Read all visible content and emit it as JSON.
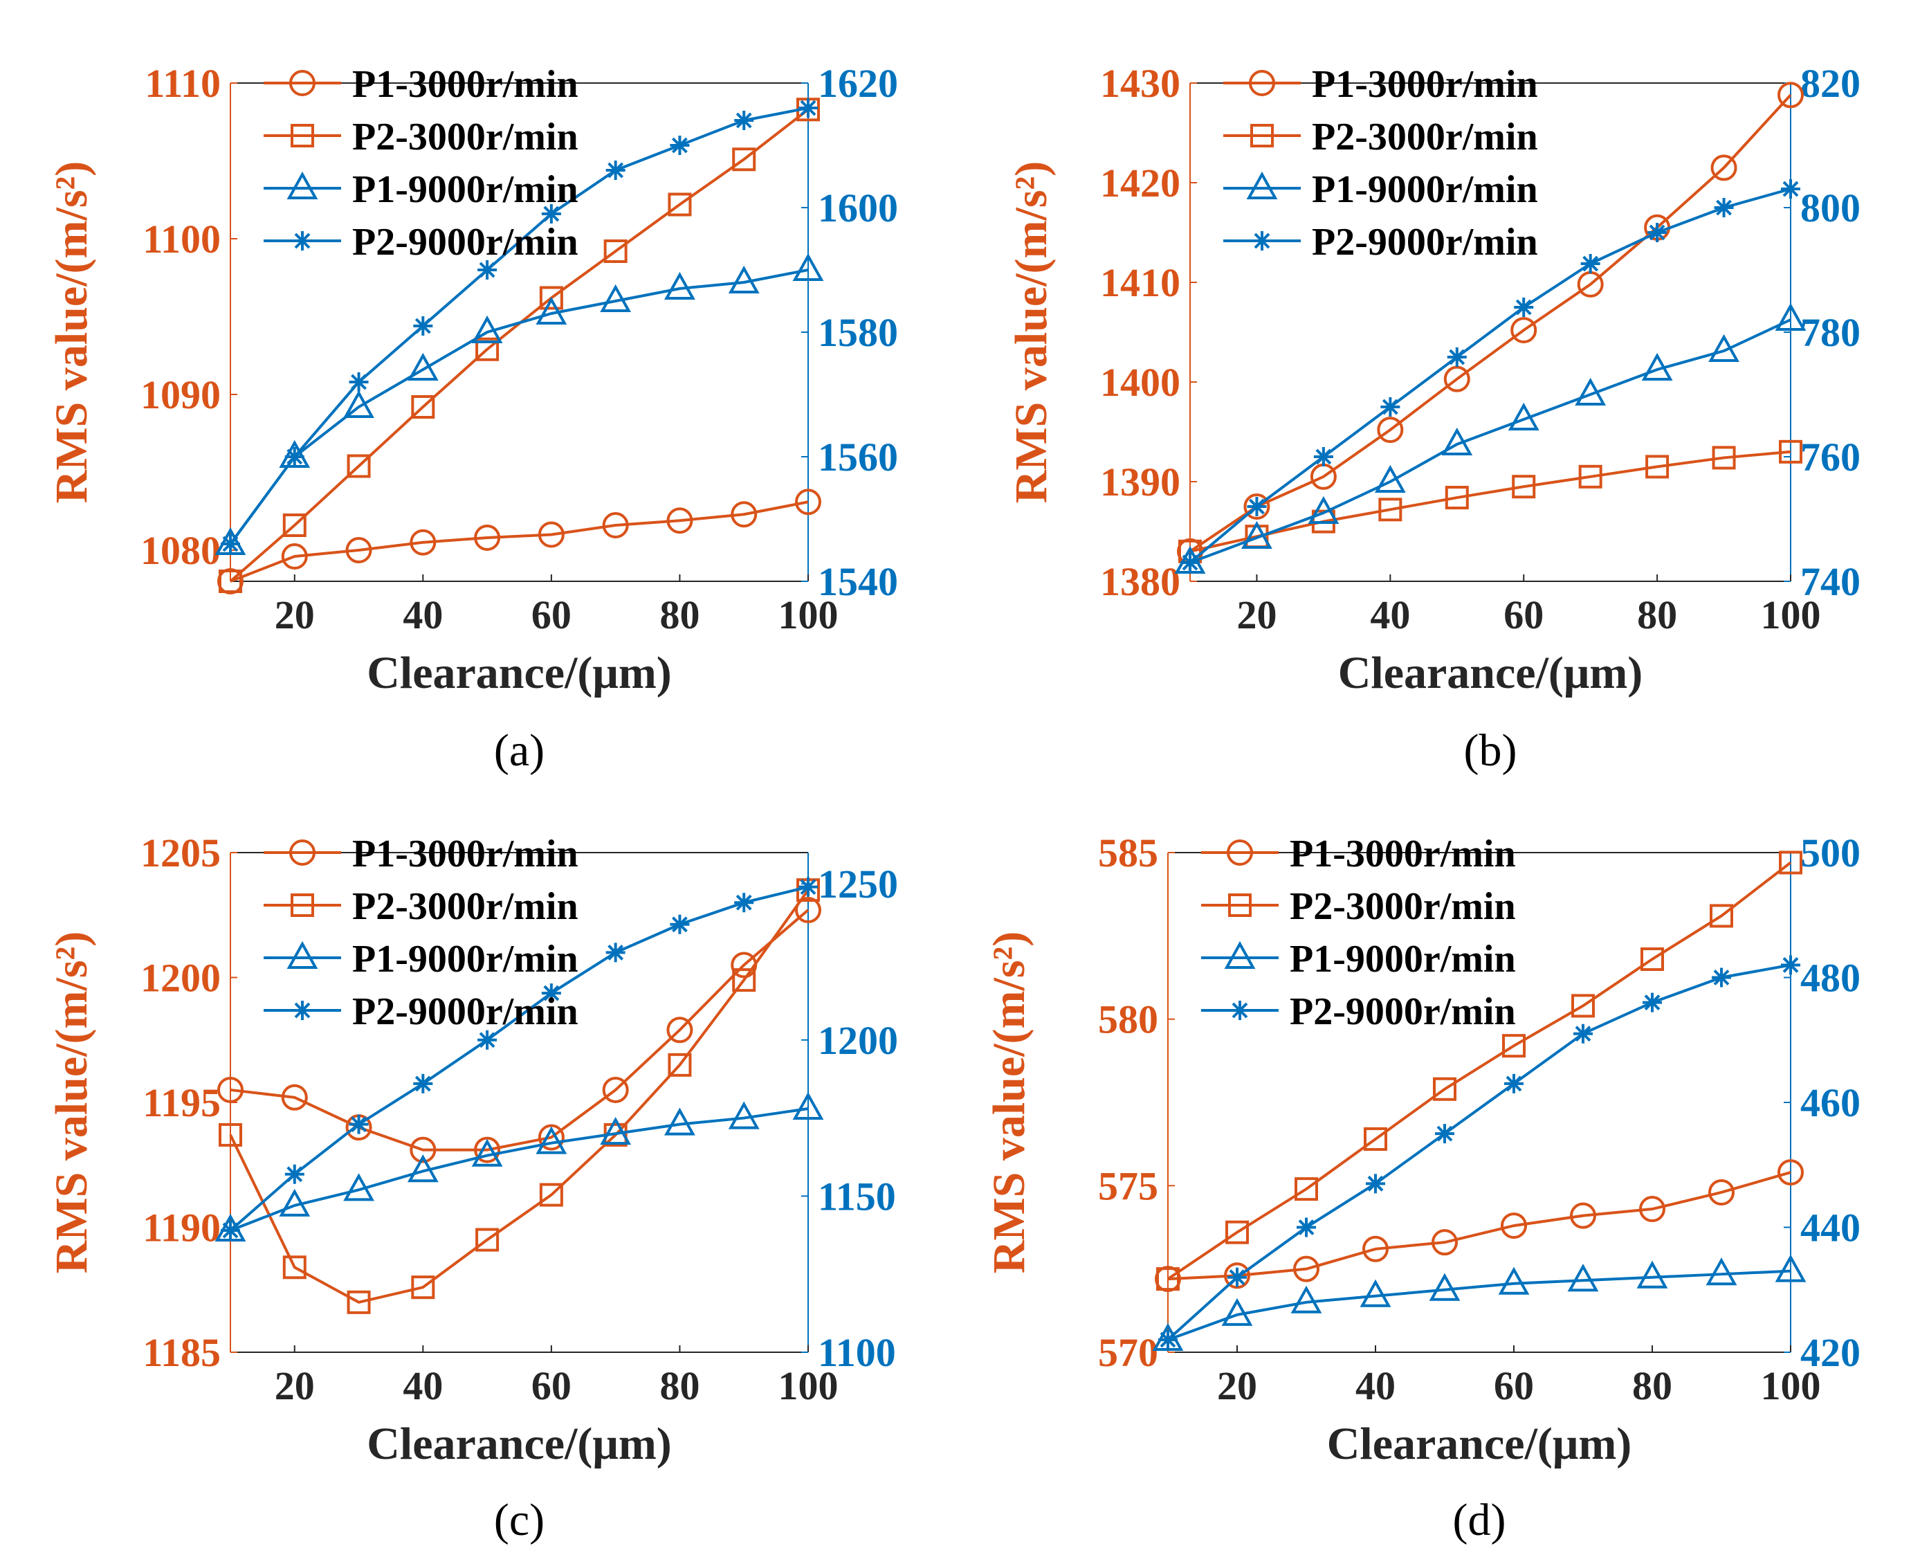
{
  "colors": {
    "left_axis": "#D95319",
    "right_axis": "#0072BD",
    "frame": "#262626"
  },
  "legend_labels": [
    "P1-3000r/min",
    "P2-3000r/min",
    "P1-9000r/min",
    "P2-9000r/min"
  ],
  "chart_data": [
    {
      "type": "line",
      "panel_label": "(a)",
      "xlabel": "Clearance/(μm)",
      "ylabel": "RMS value/(m/s²)",
      "x": [
        10,
        20,
        30,
        40,
        50,
        60,
        70,
        80,
        90,
        100
      ],
      "xlim": [
        10,
        100
      ],
      "xticks": [
        "20",
        "40",
        "60",
        "80",
        "100"
      ],
      "ylim_left": [
        1078,
        1110
      ],
      "yticks_left": [
        "1080",
        "1090",
        "1100",
        "1110"
      ],
      "ylim_right": [
        1540,
        1620
      ],
      "yticks_right": [
        "1540",
        "1560",
        "1580",
        "1600",
        "1620"
      ],
      "legend": "top-left",
      "series": [
        {
          "name": "P1-3000r/min",
          "axis": "left",
          "marker": "circle",
          "values": [
            1078.0,
            1079.6,
            1080.0,
            1080.5,
            1080.8,
            1081.0,
            1081.6,
            1081.9,
            1082.3,
            1083.1
          ]
        },
        {
          "name": "P2-3000r/min",
          "axis": "left",
          "marker": "square",
          "values": [
            1078.0,
            1081.6,
            1085.4,
            1089.2,
            1092.9,
            1096.2,
            1099.2,
            1102.2,
            1105.1,
            1108.3
          ]
        },
        {
          "name": "P1-9000r/min",
          "axis": "right",
          "marker": "triangle",
          "values": [
            1546,
            1560,
            1568,
            1574,
            1580,
            1583,
            1585,
            1587,
            1588,
            1590
          ]
        },
        {
          "name": "P2-9000r/min",
          "axis": "right",
          "marker": "star",
          "values": [
            1546,
            1560,
            1572,
            1581,
            1590,
            1599,
            1606,
            1610,
            1614,
            1616
          ]
        }
      ]
    },
    {
      "type": "line",
      "panel_label": "(b)",
      "xlabel": "Clearance/(μm)",
      "ylabel": "RMS value/(m/s²)",
      "x": [
        10,
        20,
        30,
        40,
        50,
        60,
        70,
        80,
        90,
        100
      ],
      "xlim": [
        10,
        100
      ],
      "xticks": [
        "20",
        "40",
        "60",
        "80",
        "100"
      ],
      "ylim_left": [
        1380,
        1430
      ],
      "yticks_left": [
        "1380",
        "1390",
        "1400",
        "1410",
        "1420",
        "1430"
      ],
      "ylim_right": [
        740,
        820
      ],
      "yticks_right": [
        "740",
        "760",
        "780",
        "800",
        "820"
      ],
      "legend": "top-left",
      "series": [
        {
          "name": "P1-3000r/min",
          "axis": "left",
          "marker": "circle",
          "values": [
            1383.0,
            1387.5,
            1390.5,
            1395.2,
            1400.3,
            1405.2,
            1409.8,
            1415.5,
            1421.5,
            1428.8
          ]
        },
        {
          "name": "P2-3000r/min",
          "axis": "left",
          "marker": "square",
          "values": [
            1383.0,
            1384.5,
            1386.0,
            1387.2,
            1388.4,
            1389.5,
            1390.5,
            1391.5,
            1392.4,
            1393.0
          ]
        },
        {
          "name": "P1-9000r/min",
          "axis": "right",
          "marker": "triangle",
          "values": [
            743,
            747,
            751,
            756,
            762,
            766,
            770,
            774,
            777,
            782
          ]
        },
        {
          "name": "P2-9000r/min",
          "axis": "right",
          "marker": "star",
          "values": [
            743,
            752,
            760,
            768,
            776,
            784,
            791,
            796,
            800,
            803
          ]
        }
      ]
    },
    {
      "type": "line",
      "panel_label": "(c)",
      "xlabel": "Clearance/(μm)",
      "ylabel": "RMS value/(m/s²)",
      "x": [
        10,
        20,
        30,
        40,
        50,
        60,
        70,
        80,
        90,
        100
      ],
      "xlim": [
        10,
        100
      ],
      "xticks": [
        "20",
        "40",
        "60",
        "80",
        "100"
      ],
      "ylim_left": [
        1185,
        1205
      ],
      "yticks_left": [
        "1185",
        "1190",
        "1195",
        "1200",
        "1205"
      ],
      "ylim_right": [
        1100,
        1260
      ],
      "yticks_right": [
        "1100",
        "1150",
        "1200",
        "1250"
      ],
      "legend": "top-left",
      "series": [
        {
          "name": "P1-3000r/min",
          "axis": "left",
          "marker": "circle",
          "values": [
            1195.5,
            1195.2,
            1194.0,
            1193.1,
            1193.1,
            1193.6,
            1195.5,
            1197.9,
            1200.5,
            1202.7
          ]
        },
        {
          "name": "P2-3000r/min",
          "axis": "left",
          "marker": "square",
          "values": [
            1193.7,
            1188.4,
            1187.0,
            1187.6,
            1189.5,
            1191.3,
            1193.7,
            1196.5,
            1199.9,
            1203.5
          ]
        },
        {
          "name": "P1-9000r/min",
          "axis": "right",
          "marker": "triangle",
          "values": [
            1139,
            1147,
            1152,
            1158,
            1163,
            1167,
            1170,
            1173,
            1175,
            1178
          ]
        },
        {
          "name": "P2-9000r/min",
          "axis": "right",
          "marker": "star",
          "values": [
            1139,
            1157,
            1173,
            1186,
            1200,
            1215,
            1228,
            1237,
            1244,
            1249
          ]
        }
      ]
    },
    {
      "type": "line",
      "panel_label": "(d)",
      "xlabel": "Clearance/(μm)",
      "ylabel": "RMS value/(m/s²)",
      "x": [
        10,
        20,
        30,
        40,
        50,
        60,
        70,
        80,
        90,
        100
      ],
      "xlim": [
        10,
        100
      ],
      "xticks": [
        "20",
        "40",
        "60",
        "80",
        "100"
      ],
      "ylim_left": [
        570,
        585
      ],
      "yticks_left": [
        "570",
        "575",
        "580",
        "585"
      ],
      "ylim_right": [
        420,
        500
      ],
      "yticks_right": [
        "420",
        "440",
        "460",
        "480",
        "500"
      ],
      "legend": "top-left",
      "series": [
        {
          "name": "P1-3000r/min",
          "axis": "left",
          "marker": "circle",
          "values": [
            572.2,
            572.3,
            572.5,
            573.1,
            573.3,
            573.8,
            574.1,
            574.3,
            574.8,
            575.4
          ]
        },
        {
          "name": "P2-3000r/min",
          "axis": "left",
          "marker": "square",
          "values": [
            572.2,
            573.6,
            574.9,
            576.4,
            577.9,
            579.2,
            580.4,
            581.8,
            583.1,
            584.7
          ]
        },
        {
          "name": "P1-9000r/min",
          "axis": "right",
          "marker": "triangle",
          "values": [
            422,
            426,
            428,
            429,
            430,
            431,
            431.5,
            432,
            432.5,
            433
          ]
        },
        {
          "name": "P2-9000r/min",
          "axis": "right",
          "marker": "star",
          "values": [
            422,
            432,
            440,
            447,
            455,
            463,
            471,
            476,
            480,
            482
          ]
        }
      ]
    }
  ]
}
